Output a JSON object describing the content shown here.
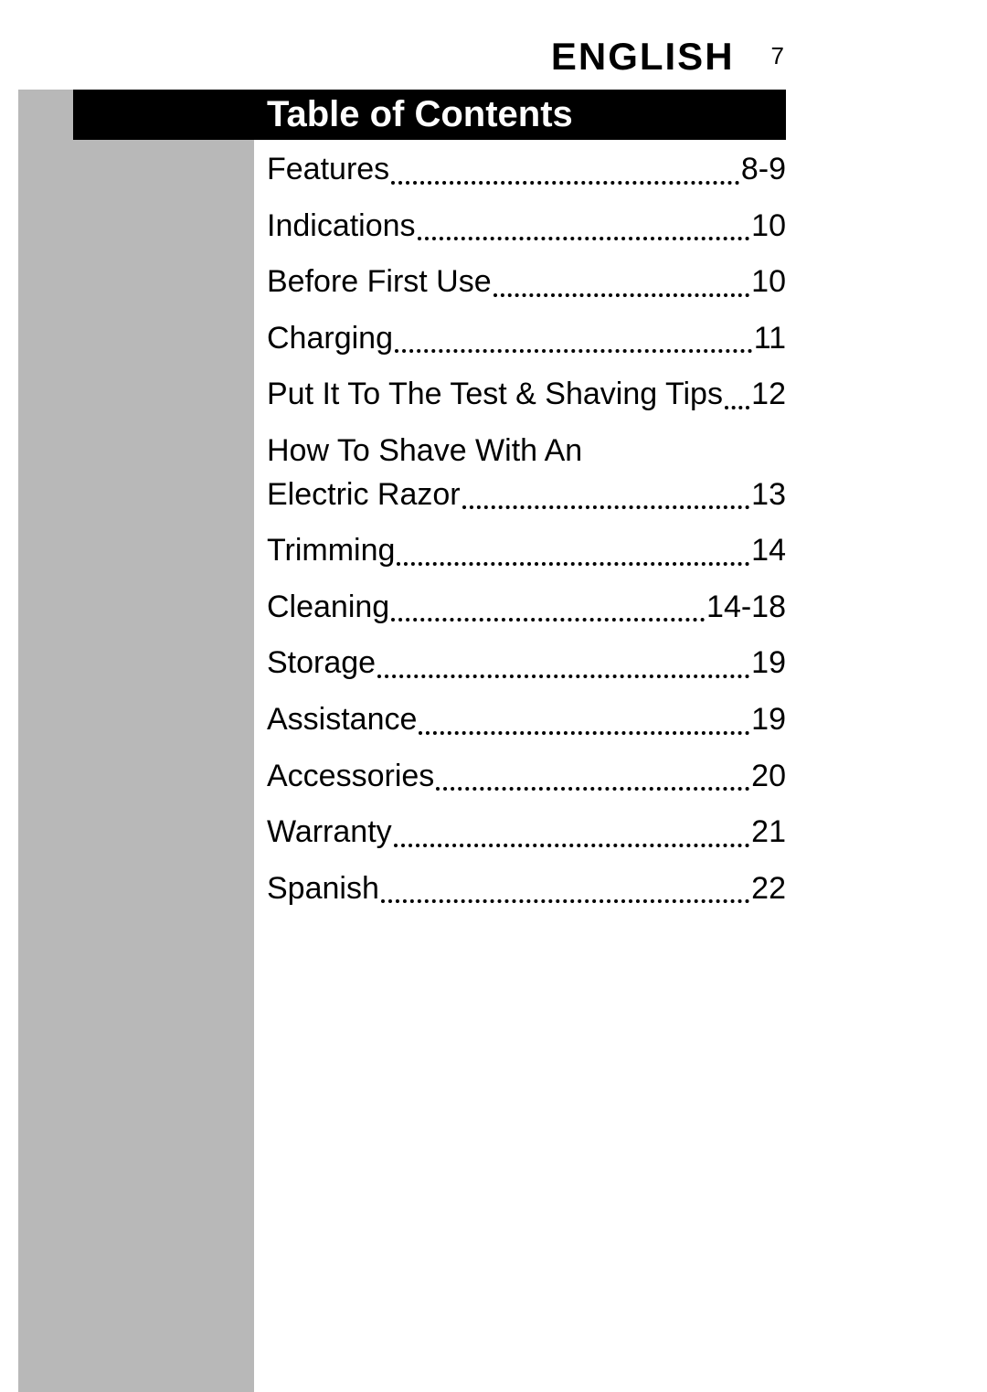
{
  "header": {
    "language": "ENGLISH",
    "page_number": "7"
  },
  "title": "Table of Contents",
  "toc": {
    "entries": [
      {
        "label": "Features",
        "page": "8-9",
        "multiline": false
      },
      {
        "label": "Indications",
        "page": "10",
        "multiline": false
      },
      {
        "label": "Before First Use",
        "page": "10",
        "multiline": false
      },
      {
        "label": "Charging",
        "page": "11",
        "multiline": false
      },
      {
        "label": "Put It To The Test & Shaving Tips",
        "page": "12",
        "multiline": false
      },
      {
        "label_line1": "How To Shave With An",
        "label_line2": "Electric Razor",
        "page": "13",
        "multiline": true
      },
      {
        "label": "Trimming",
        "page": "14",
        "multiline": false
      },
      {
        "label": "Cleaning",
        "page": "14-18",
        "multiline": false
      },
      {
        "label": "Storage",
        "page": "19",
        "multiline": false
      },
      {
        "label": "Assistance",
        "page": "19",
        "multiline": false
      },
      {
        "label": "Accessories",
        "page": "20",
        "multiline": false
      },
      {
        "label": "Warranty",
        "page": "21",
        "multiline": false
      },
      {
        "label": "Spanish",
        "page": "22",
        "multiline": false
      }
    ]
  },
  "colors": {
    "sidebar_gray": "#b8b8b8",
    "title_bg": "#000000",
    "title_text": "#ffffff",
    "body_text": "#000000",
    "page_bg": "#ffffff"
  },
  "fonts": {
    "header_language_size": 42,
    "header_page_size": 26,
    "title_size": 40,
    "toc_size": 34
  }
}
